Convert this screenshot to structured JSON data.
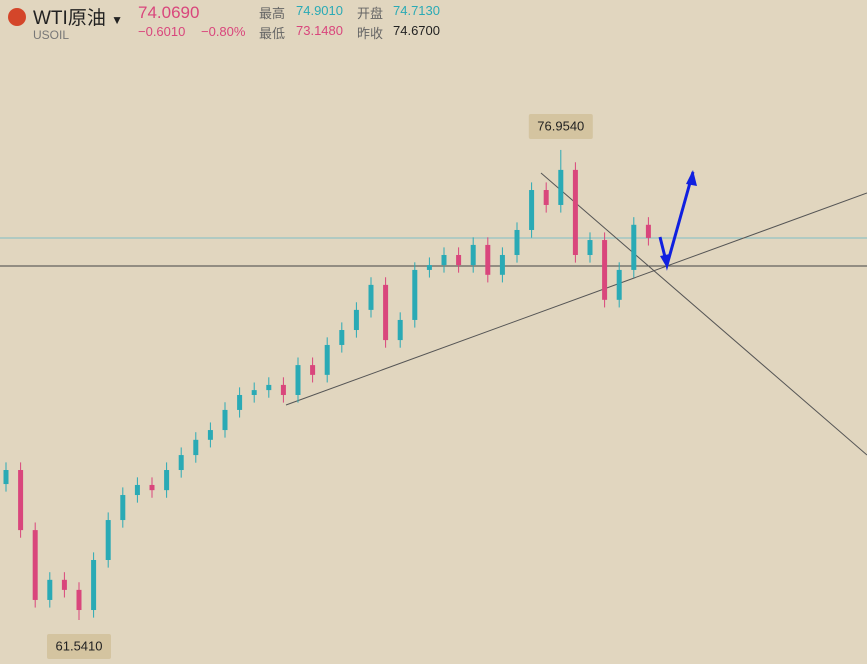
{
  "header": {
    "symbol": "WTI原油",
    "code": "USOIL",
    "price": "74.0690",
    "change": "−0.6010",
    "change_pct": "−0.80%",
    "stats": [
      {
        "label": "最高",
        "value": "74.9010"
      },
      {
        "label": "开盘",
        "value": "74.7130"
      },
      {
        "label": "最低",
        "value": "73.1480"
      },
      {
        "label": "昨收",
        "value": "74.6700"
      }
    ]
  },
  "chart_data": {
    "type": "candlestick",
    "up_color": "#2aaab5",
    "down_color": "#d9467c",
    "ylim": [
      60.1,
      81.87
    ],
    "high_marker": {
      "value": 76.954,
      "label": "76.9540"
    },
    "low_marker": {
      "value": 61.541,
      "label": "61.5410"
    },
    "candles": [
      [
        66.0,
        66.71,
        65.75,
        66.46
      ],
      [
        66.46,
        66.71,
        64.24,
        64.49
      ],
      [
        64.49,
        64.74,
        61.95,
        62.2
      ],
      [
        62.2,
        63.11,
        61.95,
        62.86
      ],
      [
        62.86,
        63.11,
        62.28,
        62.53
      ],
      [
        62.53,
        62.78,
        61.541,
        61.87
      ],
      [
        61.87,
        63.76,
        61.62,
        63.51
      ],
      [
        63.51,
        65.07,
        63.26,
        64.82
      ],
      [
        64.82,
        65.89,
        64.57,
        65.64
      ],
      [
        65.64,
        66.22,
        65.39,
        65.97
      ],
      [
        65.97,
        66.22,
        65.55,
        65.8
      ],
      [
        65.8,
        66.71,
        65.55,
        66.46
      ],
      [
        66.46,
        67.2,
        66.21,
        66.95
      ],
      [
        66.95,
        67.7,
        66.7,
        67.45
      ],
      [
        67.45,
        68.02,
        67.2,
        67.77
      ],
      [
        67.77,
        68.68,
        67.52,
        68.43
      ],
      [
        68.43,
        69.17,
        68.18,
        68.92
      ],
      [
        68.92,
        69.33,
        68.67,
        69.08
      ],
      [
        69.08,
        69.5,
        68.83,
        69.25
      ],
      [
        69.25,
        69.5,
        68.67,
        68.92
      ],
      [
        68.92,
        70.15,
        68.67,
        69.9
      ],
      [
        69.9,
        70.15,
        69.33,
        69.58
      ],
      [
        69.58,
        70.81,
        69.33,
        70.56
      ],
      [
        70.56,
        71.3,
        70.31,
        71.05
      ],
      [
        71.05,
        71.96,
        70.8,
        71.71
      ],
      [
        71.71,
        72.78,
        71.46,
        72.53
      ],
      [
        72.53,
        72.78,
        70.47,
        70.72
      ],
      [
        70.72,
        71.63,
        70.47,
        71.38
      ],
      [
        71.38,
        73.27,
        71.13,
        73.02
      ],
      [
        73.02,
        73.43,
        72.77,
        73.18
      ],
      [
        73.18,
        73.76,
        72.93,
        73.51
      ],
      [
        73.51,
        73.76,
        72.93,
        73.18
      ],
      [
        73.18,
        74.09,
        72.93,
        73.84
      ],
      [
        73.84,
        74.09,
        72.61,
        72.86
      ],
      [
        72.86,
        73.76,
        72.61,
        73.51
      ],
      [
        73.51,
        74.58,
        73.26,
        74.33
      ],
      [
        74.33,
        75.89,
        74.08,
        75.64
      ],
      [
        75.64,
        75.89,
        74.9,
        75.15
      ],
      [
        75.15,
        76.954,
        74.9,
        76.3
      ],
      [
        76.3,
        76.55,
        73.26,
        73.51
      ],
      [
        73.51,
        74.25,
        73.26,
        74.0
      ],
      [
        74.0,
        74.25,
        71.79,
        72.04
      ],
      [
        72.04,
        73.27,
        71.79,
        73.02
      ],
      [
        73.02,
        74.75,
        72.77,
        74.5
      ],
      [
        74.5,
        74.75,
        73.82,
        74.07
      ]
    ]
  }
}
